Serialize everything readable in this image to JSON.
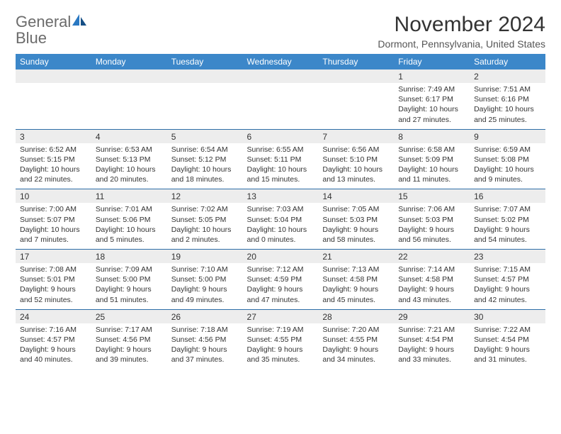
{
  "logo": {
    "word1": "General",
    "word2": "Blue"
  },
  "title": "November 2024",
  "subtitle": "Dormont, Pennsylvania, United States",
  "colors": {
    "header_bg": "#3c87c9",
    "header_text": "#ffffff",
    "daynum_bg": "#ededed",
    "row_border": "#2d6ea8",
    "body_text": "#333333",
    "logo_gray": "#6b6b6b",
    "logo_blue": "#2a78c2"
  },
  "day_headers": [
    "Sunday",
    "Monday",
    "Tuesday",
    "Wednesday",
    "Thursday",
    "Friday",
    "Saturday"
  ],
  "weeks": [
    [
      {
        "num": "",
        "lines": []
      },
      {
        "num": "",
        "lines": []
      },
      {
        "num": "",
        "lines": []
      },
      {
        "num": "",
        "lines": []
      },
      {
        "num": "",
        "lines": []
      },
      {
        "num": "1",
        "lines": [
          "Sunrise: 7:49 AM",
          "Sunset: 6:17 PM",
          "Daylight: 10 hours",
          "and 27 minutes."
        ]
      },
      {
        "num": "2",
        "lines": [
          "Sunrise: 7:51 AM",
          "Sunset: 6:16 PM",
          "Daylight: 10 hours",
          "and 25 minutes."
        ]
      }
    ],
    [
      {
        "num": "3",
        "lines": [
          "Sunrise: 6:52 AM",
          "Sunset: 5:15 PM",
          "Daylight: 10 hours",
          "and 22 minutes."
        ]
      },
      {
        "num": "4",
        "lines": [
          "Sunrise: 6:53 AM",
          "Sunset: 5:13 PM",
          "Daylight: 10 hours",
          "and 20 minutes."
        ]
      },
      {
        "num": "5",
        "lines": [
          "Sunrise: 6:54 AM",
          "Sunset: 5:12 PM",
          "Daylight: 10 hours",
          "and 18 minutes."
        ]
      },
      {
        "num": "6",
        "lines": [
          "Sunrise: 6:55 AM",
          "Sunset: 5:11 PM",
          "Daylight: 10 hours",
          "and 15 minutes."
        ]
      },
      {
        "num": "7",
        "lines": [
          "Sunrise: 6:56 AM",
          "Sunset: 5:10 PM",
          "Daylight: 10 hours",
          "and 13 minutes."
        ]
      },
      {
        "num": "8",
        "lines": [
          "Sunrise: 6:58 AM",
          "Sunset: 5:09 PM",
          "Daylight: 10 hours",
          "and 11 minutes."
        ]
      },
      {
        "num": "9",
        "lines": [
          "Sunrise: 6:59 AM",
          "Sunset: 5:08 PM",
          "Daylight: 10 hours",
          "and 9 minutes."
        ]
      }
    ],
    [
      {
        "num": "10",
        "lines": [
          "Sunrise: 7:00 AM",
          "Sunset: 5:07 PM",
          "Daylight: 10 hours",
          "and 7 minutes."
        ]
      },
      {
        "num": "11",
        "lines": [
          "Sunrise: 7:01 AM",
          "Sunset: 5:06 PM",
          "Daylight: 10 hours",
          "and 5 minutes."
        ]
      },
      {
        "num": "12",
        "lines": [
          "Sunrise: 7:02 AM",
          "Sunset: 5:05 PM",
          "Daylight: 10 hours",
          "and 2 minutes."
        ]
      },
      {
        "num": "13",
        "lines": [
          "Sunrise: 7:03 AM",
          "Sunset: 5:04 PM",
          "Daylight: 10 hours",
          "and 0 minutes."
        ]
      },
      {
        "num": "14",
        "lines": [
          "Sunrise: 7:05 AM",
          "Sunset: 5:03 PM",
          "Daylight: 9 hours",
          "and 58 minutes."
        ]
      },
      {
        "num": "15",
        "lines": [
          "Sunrise: 7:06 AM",
          "Sunset: 5:03 PM",
          "Daylight: 9 hours",
          "and 56 minutes."
        ]
      },
      {
        "num": "16",
        "lines": [
          "Sunrise: 7:07 AM",
          "Sunset: 5:02 PM",
          "Daylight: 9 hours",
          "and 54 minutes."
        ]
      }
    ],
    [
      {
        "num": "17",
        "lines": [
          "Sunrise: 7:08 AM",
          "Sunset: 5:01 PM",
          "Daylight: 9 hours",
          "and 52 minutes."
        ]
      },
      {
        "num": "18",
        "lines": [
          "Sunrise: 7:09 AM",
          "Sunset: 5:00 PM",
          "Daylight: 9 hours",
          "and 51 minutes."
        ]
      },
      {
        "num": "19",
        "lines": [
          "Sunrise: 7:10 AM",
          "Sunset: 5:00 PM",
          "Daylight: 9 hours",
          "and 49 minutes."
        ]
      },
      {
        "num": "20",
        "lines": [
          "Sunrise: 7:12 AM",
          "Sunset: 4:59 PM",
          "Daylight: 9 hours",
          "and 47 minutes."
        ]
      },
      {
        "num": "21",
        "lines": [
          "Sunrise: 7:13 AM",
          "Sunset: 4:58 PM",
          "Daylight: 9 hours",
          "and 45 minutes."
        ]
      },
      {
        "num": "22",
        "lines": [
          "Sunrise: 7:14 AM",
          "Sunset: 4:58 PM",
          "Daylight: 9 hours",
          "and 43 minutes."
        ]
      },
      {
        "num": "23",
        "lines": [
          "Sunrise: 7:15 AM",
          "Sunset: 4:57 PM",
          "Daylight: 9 hours",
          "and 42 minutes."
        ]
      }
    ],
    [
      {
        "num": "24",
        "lines": [
          "Sunrise: 7:16 AM",
          "Sunset: 4:57 PM",
          "Daylight: 9 hours",
          "and 40 minutes."
        ]
      },
      {
        "num": "25",
        "lines": [
          "Sunrise: 7:17 AM",
          "Sunset: 4:56 PM",
          "Daylight: 9 hours",
          "and 39 minutes."
        ]
      },
      {
        "num": "26",
        "lines": [
          "Sunrise: 7:18 AM",
          "Sunset: 4:56 PM",
          "Daylight: 9 hours",
          "and 37 minutes."
        ]
      },
      {
        "num": "27",
        "lines": [
          "Sunrise: 7:19 AM",
          "Sunset: 4:55 PM",
          "Daylight: 9 hours",
          "and 35 minutes."
        ]
      },
      {
        "num": "28",
        "lines": [
          "Sunrise: 7:20 AM",
          "Sunset: 4:55 PM",
          "Daylight: 9 hours",
          "and 34 minutes."
        ]
      },
      {
        "num": "29",
        "lines": [
          "Sunrise: 7:21 AM",
          "Sunset: 4:54 PM",
          "Daylight: 9 hours",
          "and 33 minutes."
        ]
      },
      {
        "num": "30",
        "lines": [
          "Sunrise: 7:22 AM",
          "Sunset: 4:54 PM",
          "Daylight: 9 hours",
          "and 31 minutes."
        ]
      }
    ]
  ]
}
